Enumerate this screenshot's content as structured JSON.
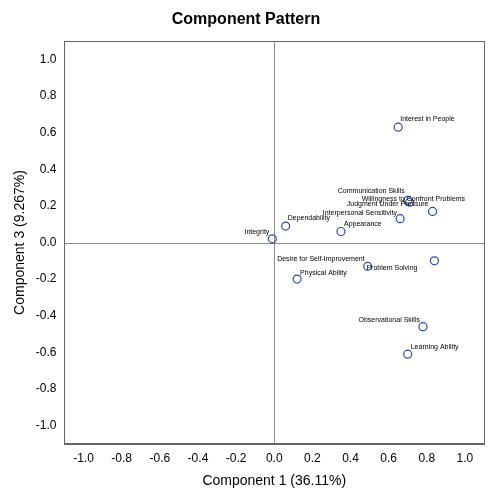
{
  "chart_data": {
    "type": "scatter",
    "title": "Component Pattern",
    "x_label": "Component 1 (36.11%)",
    "y_label": "Component 3 (9.267%)",
    "labels": [
      "Interest in People",
      "Communication Skills",
      "Willingness to Confront Problems",
      "Judgment Under Pressure",
      "Interpersonal Sensitivity",
      "Appearance",
      "Dependability",
      "Integrity",
      "Desire for Self-Improvement",
      "Problem Solving",
      "Physical Ability",
      "Observational Skills",
      "Learning Ability"
    ],
    "x": [
      0.65,
      0.7,
      0.71,
      0.83,
      0.66,
      0.35,
      0.06,
      -0.01,
      0.49,
      0.84,
      0.12,
      0.78,
      0.7
    ],
    "values": [
      0.63,
      0.23,
      0.22,
      0.17,
      0.13,
      0.06,
      0.09,
      0.02,
      -0.13,
      -0.1,
      -0.2,
      -0.46,
      -0.61
    ],
    "color": "#2a4f9a",
    "marker": "circle",
    "xlim": [
      -1.1,
      1.1
    ],
    "ylim": [
      -1.1,
      1.1
    ],
    "xticks": [
      {
        "value": -1,
        "label": "-1.0"
      },
      -0.8,
      -0.6,
      -0.4,
      -0.2,
      {
        "value": 0,
        "label": "0.0"
      },
      0.2,
      0.4,
      0.6,
      0.8,
      {
        "value": 1,
        "label": "1.0"
      }
    ],
    "yticks": [
      {
        "value": -1,
        "label": "-1.0"
      },
      -0.8,
      -0.6,
      -0.4,
      -0.2,
      {
        "value": 0,
        "label": "0.0"
      },
      0.2,
      0.4,
      0.6,
      0.8,
      {
        "value": 1,
        "label": "1.0"
      }
    ],
    "reference_lines": [
      {
        "axis": "x",
        "value": 0
      },
      {
        "axis": "y",
        "value": 0
      }
    ],
    "grid": false
  }
}
